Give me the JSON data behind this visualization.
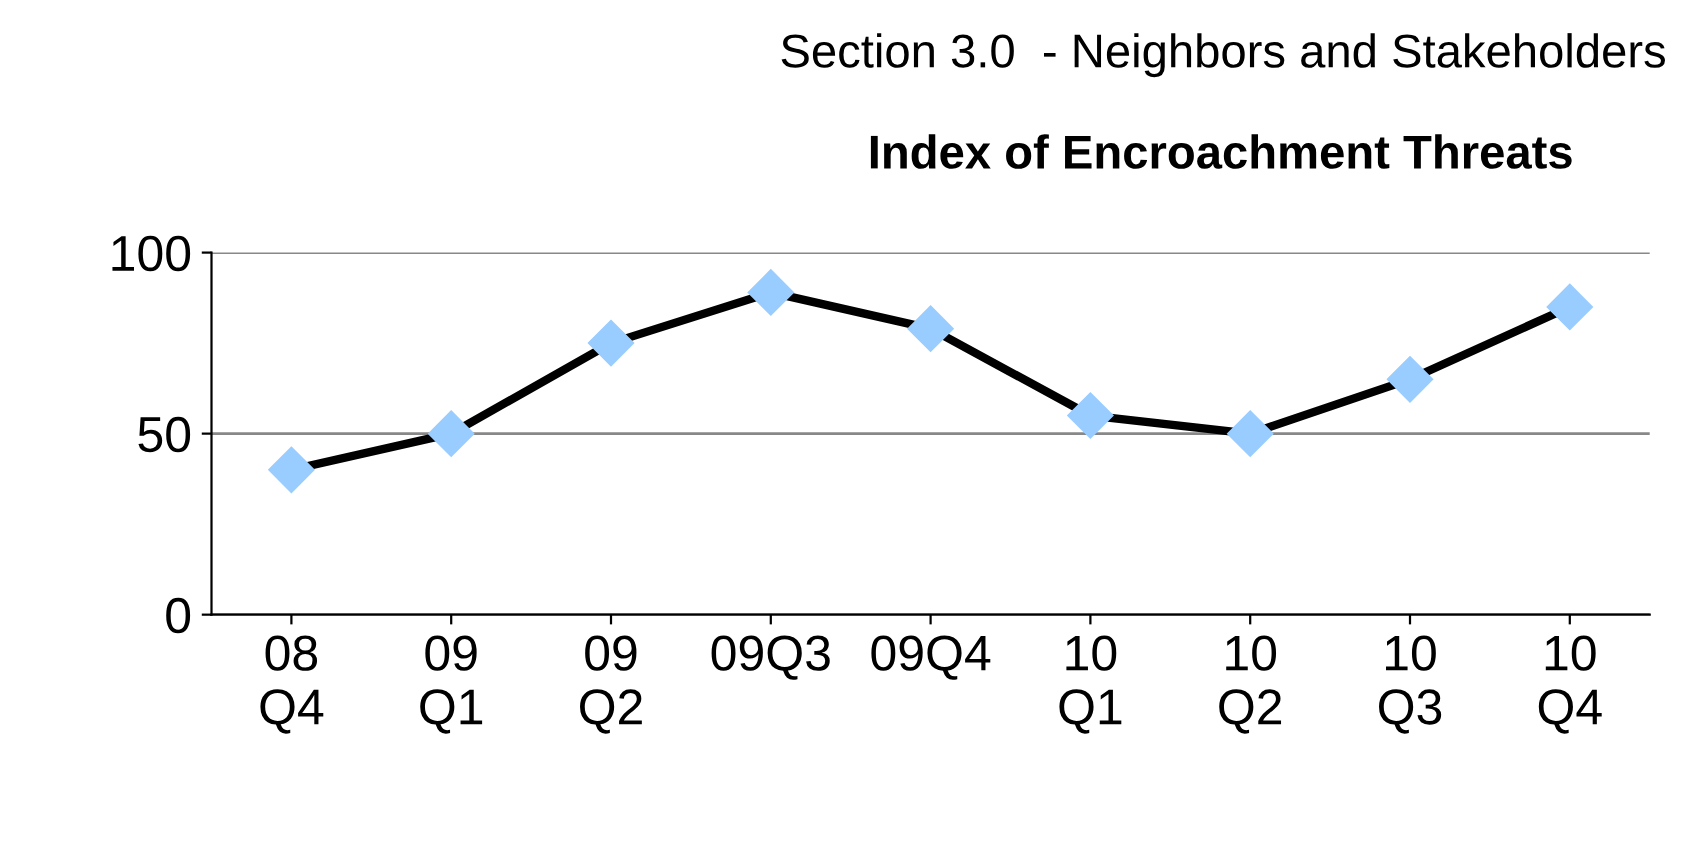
{
  "chart_data": {
    "type": "line",
    "subtitle": "Section 3.0  - Neighbors and Stakeholders",
    "title": "Index of Encroachment Threats",
    "categories": [
      "08\nQ4",
      "09\nQ1",
      "09\nQ2",
      "09Q3",
      "09Q4",
      "10\nQ1",
      "10\nQ2",
      "10\nQ3",
      "10\nQ4"
    ],
    "series": [
      {
        "color": "#99ccff",
        "values": [
          40,
          50,
          75,
          89,
          79,
          55,
          50,
          65,
          85
        ]
      }
    ],
    "ylim": [
      0,
      100
    ],
    "yticks": [
      0,
      50,
      100
    ],
    "grid": "y",
    "marker": "diamond",
    "line_style": "solid"
  }
}
